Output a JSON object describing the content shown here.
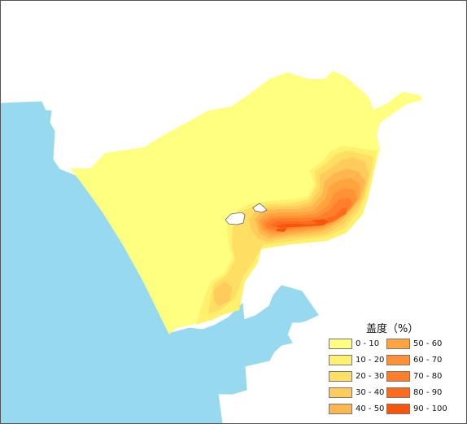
{
  "colors": {
    "water": "#97d9ef",
    "background": "#ffffff",
    "hole": "#ffffff"
  },
  "legend": {
    "title": "盖度（%）",
    "items": [
      {
        "label": "0 - 10",
        "color": "#ffff80"
      },
      {
        "label": "10 - 20",
        "color": "#fff06e"
      },
      {
        "label": "20 - 30",
        "color": "#ffde64"
      },
      {
        "label": "30 - 40",
        "color": "#ffcb5a"
      },
      {
        "label": "40 - 50",
        "color": "#ffb64e"
      },
      {
        "label": "50 - 60",
        "color": "#ffa43e"
      },
      {
        "label": "60 - 70",
        "color": "#ff9236"
      },
      {
        "label": "70 - 80",
        "color": "#ff7e2c"
      },
      {
        "label": "80 - 90",
        "color": "#fe6a1e"
      },
      {
        "label": "90 - 100",
        "color": "#f5560d"
      }
    ]
  }
}
